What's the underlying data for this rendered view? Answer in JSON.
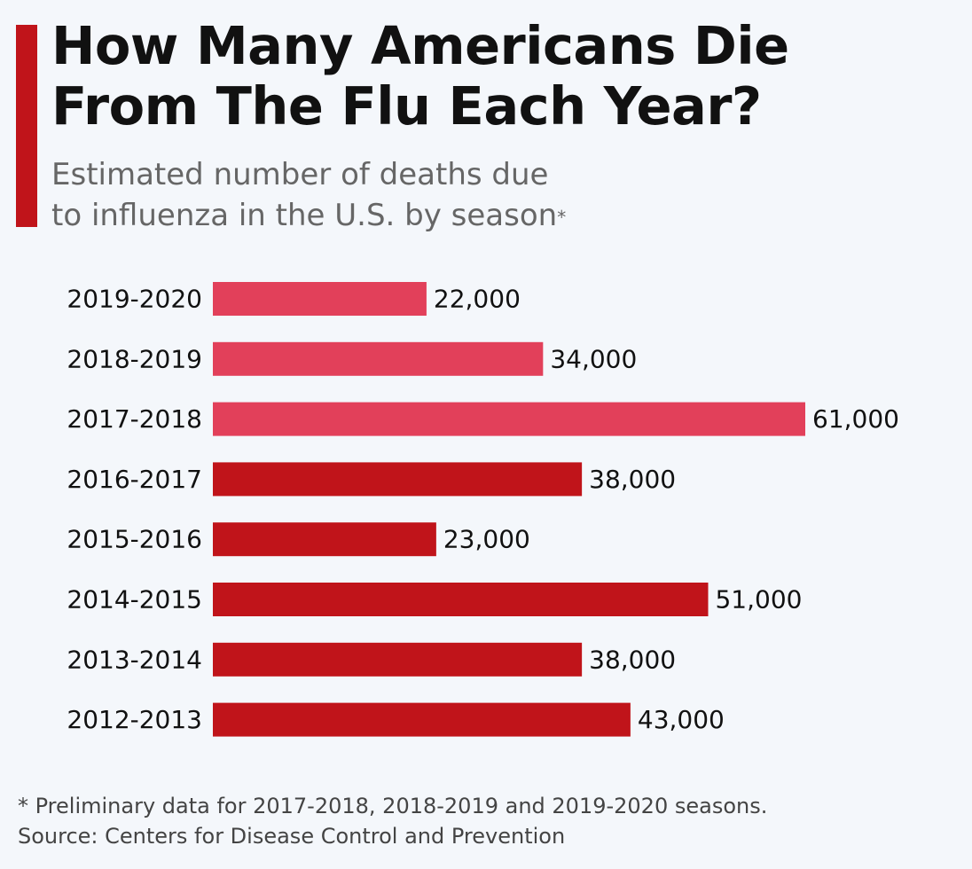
{
  "header": {
    "title_line1": "How Many Americans Die",
    "title_line2": "From The Flu Each Year?",
    "subtitle_line1": "Estimated number of deaths due",
    "subtitle_line2": "to influenza in the U.S. by season",
    "subtitle_marker": "*"
  },
  "footer": {
    "note": "* Preliminary data for 2017-2018, 2018-2019 and 2019-2020 seasons.",
    "source": "Source: Centers for Disease Control and Prevention"
  },
  "colors": {
    "accent": "#c0141a",
    "preliminary_bar": "#e2405a",
    "final_bar": "#c0141a"
  },
  "chart_data": {
    "type": "bar",
    "orientation": "horizontal",
    "categories": [
      "2019-2020",
      "2018-2019",
      "2017-2018",
      "2016-2017",
      "2015-2016",
      "2014-2015",
      "2013-2014",
      "2012-2013"
    ],
    "values": [
      22000,
      34000,
      61000,
      38000,
      23000,
      51000,
      38000,
      43000
    ],
    "value_labels": [
      "22,000",
      "34,000",
      "61,000",
      "38,000",
      "23,000",
      "51,000",
      "38,000",
      "43,000"
    ],
    "preliminary": [
      true,
      true,
      true,
      false,
      false,
      false,
      false,
      false
    ],
    "title": "How Many Americans Die From The Flu Each Year?",
    "xlabel": "",
    "ylabel": "",
    "xlim": [
      0,
      61000
    ],
    "grid": false,
    "legend": "none"
  }
}
